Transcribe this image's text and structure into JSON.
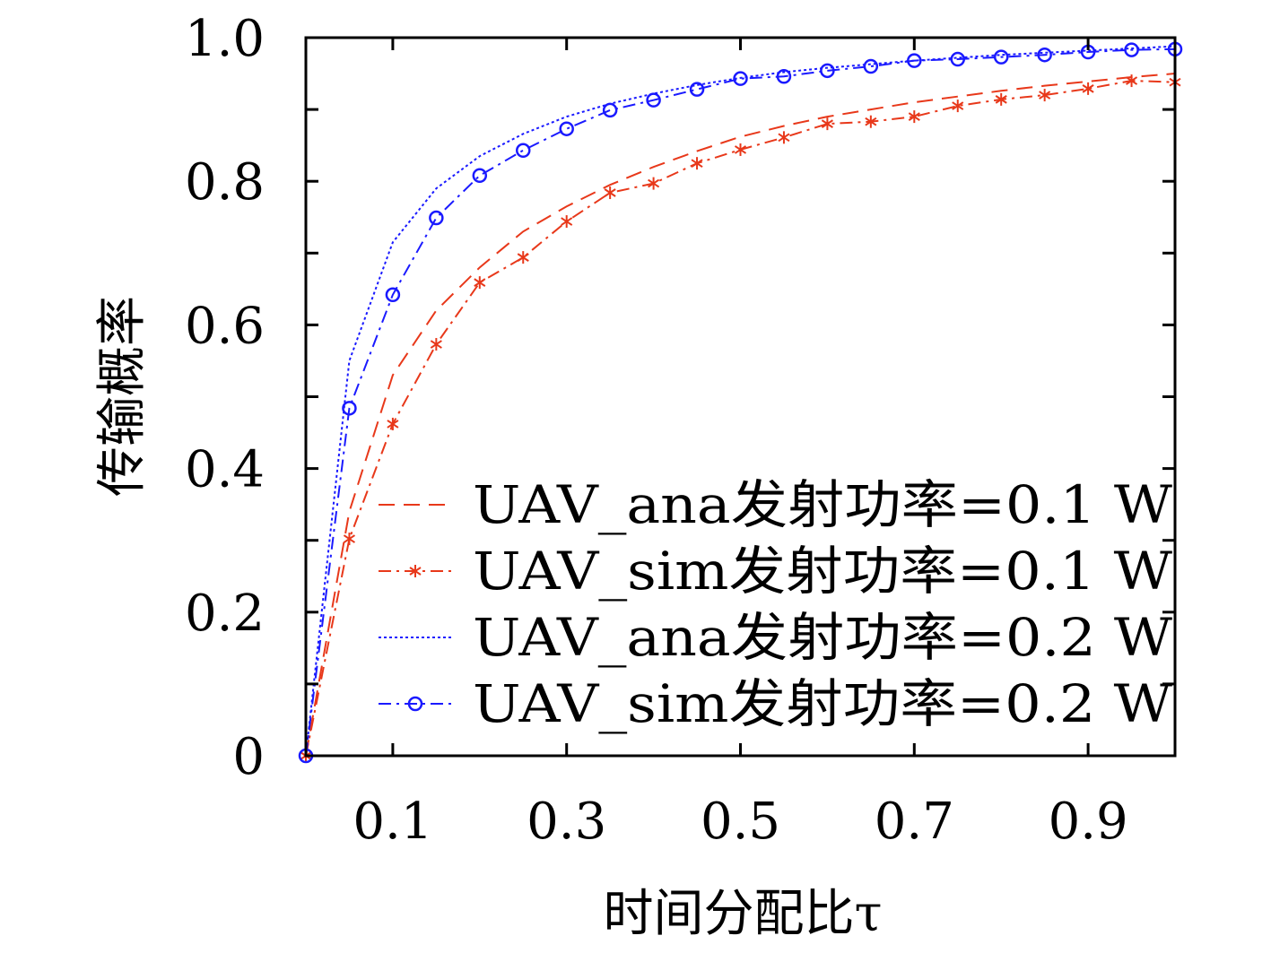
{
  "chart_data": {
    "type": "line",
    "title": "",
    "xlabel": "时间分配比τ",
    "ylabel": "传输概率",
    "xlim": [
      0,
      1
    ],
    "ylim": [
      0,
      1
    ],
    "xticks": [
      0.1,
      0.3,
      0.5,
      0.7,
      0.9
    ],
    "xtick_labels": [
      "0.1",
      "0.3",
      "0.5",
      "0.7",
      "0.9"
    ],
    "yticks": [
      0,
      0.2,
      0.4,
      0.6,
      0.8,
      1.0
    ],
    "ytick_labels": [
      "0",
      "0.2",
      "0.4",
      "0.6",
      "0.8",
      "1.0"
    ],
    "grid": false,
    "legend_position": "bottom-right",
    "x": [
      0,
      0.05,
      0.1,
      0.15,
      0.2,
      0.25,
      0.3,
      0.35,
      0.4,
      0.45,
      0.5,
      0.55,
      0.6,
      0.65,
      0.7,
      0.75,
      0.8,
      0.85,
      0.9,
      0.95,
      1.0
    ],
    "series": [
      {
        "name": "UAV_ana发射功率=0.1 W",
        "color": "#e8381a",
        "style": "dashed",
        "marker": "none",
        "values": [
          0,
          0.34,
          0.53,
          0.62,
          0.68,
          0.73,
          0.765,
          0.795,
          0.82,
          0.842,
          0.862,
          0.877,
          0.89,
          0.9,
          0.91,
          0.918,
          0.926,
          0.933,
          0.939,
          0.945,
          0.95
        ]
      },
      {
        "name": "UAV_sim发射功率=0.1 W",
        "color": "#e8381a",
        "style": "dashdot",
        "marker": "star",
        "values": [
          0,
          0.302,
          0.462,
          0.573,
          0.659,
          0.694,
          0.744,
          0.784,
          0.797,
          0.825,
          0.844,
          0.861,
          0.88,
          0.883,
          0.89,
          0.905,
          0.914,
          0.92,
          0.929,
          0.94,
          0.938
        ]
      },
      {
        "name": "UAV_ana发射功率=0.2 W",
        "color": "#1a1aff",
        "style": "dotted",
        "marker": "none",
        "values": [
          0,
          0.55,
          0.715,
          0.79,
          0.835,
          0.866,
          0.89,
          0.908,
          0.922,
          0.934,
          0.944,
          0.952,
          0.958,
          0.963,
          0.968,
          0.972,
          0.976,
          0.979,
          0.982,
          0.985,
          0.988
        ]
      },
      {
        "name": "UAV_sim发射功率=0.2 W",
        "color": "#1a1aff",
        "style": "dashdot",
        "marker": "circle",
        "values": [
          0,
          0.484,
          0.642,
          0.749,
          0.808,
          0.843,
          0.873,
          0.899,
          0.913,
          0.928,
          0.943,
          0.946,
          0.954,
          0.96,
          0.968,
          0.97,
          0.973,
          0.976,
          0.98,
          0.983,
          0.984
        ]
      }
    ]
  }
}
